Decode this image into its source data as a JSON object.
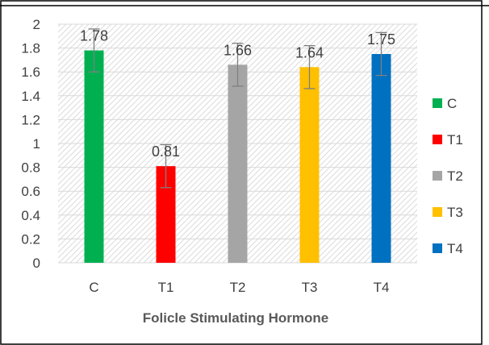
{
  "chart_data": {
    "type": "bar",
    "title": "",
    "xlabel": "Folicle Stimulating Hormone",
    "ylabel": "",
    "ylim": [
      0,
      2
    ],
    "y_ticks": [
      "0",
      "0.2",
      "0.4",
      "0.6",
      "0.8",
      "1",
      "1.2",
      "1.4",
      "1.6",
      "1.8",
      "2"
    ],
    "grid": "hatched plot area",
    "legend_placement": "right",
    "categories": [
      "C",
      "T1",
      "T2",
      "T3",
      "T4"
    ],
    "values": [
      1.78,
      0.81,
      1.66,
      1.64,
      1.75
    ],
    "data_labels": [
      "1.78",
      "0.81",
      "1.66",
      "1.64",
      "1.75"
    ],
    "error": [
      0.18,
      0.18,
      0.18,
      0.18,
      0.18
    ],
    "colors": [
      "#00b050",
      "#ff0000",
      "#a5a5a5",
      "#ffc000",
      "#0070c0"
    ],
    "legend": [
      "C",
      "T1",
      "T2",
      "T3",
      "T4"
    ]
  }
}
